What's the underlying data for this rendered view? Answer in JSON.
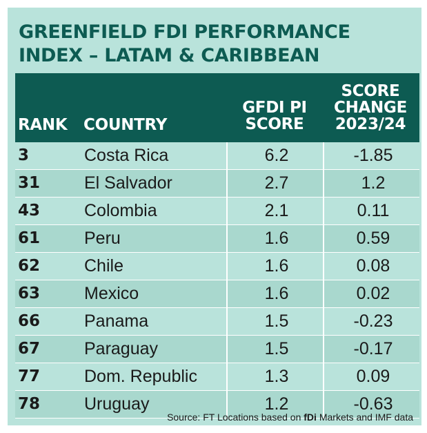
{
  "chart_data": {
    "type": "table",
    "title_lines": [
      "GREENFIELD FDI PERFORMANCE",
      "INDEX – LATAM & CARIBBEAN"
    ],
    "columns": {
      "rank": "RANK",
      "country": "COUNTRY",
      "score": [
        "GFDI PI",
        "SCORE"
      ],
      "change": [
        "SCORE",
        "CHANGE",
        "2023/24"
      ]
    },
    "rows": [
      {
        "rank": "3",
        "country": "Costa Rica",
        "score": "6.2",
        "change": "-1.85"
      },
      {
        "rank": "31",
        "country": "El Salvador",
        "score": "2.7",
        "change": "1.2"
      },
      {
        "rank": "43",
        "country": "Colombia",
        "score": "2.1",
        "change": "0.11"
      },
      {
        "rank": "61",
        "country": "Peru",
        "score": "1.6",
        "change": "0.59"
      },
      {
        "rank": "62",
        "country": "Chile",
        "score": "1.6",
        "change": "0.08"
      },
      {
        "rank": "63",
        "country": "Mexico",
        "score": "1.6",
        "change": "0.02"
      },
      {
        "rank": "66",
        "country": "Panama",
        "score": "1.5",
        "change": "-0.23"
      },
      {
        "rank": "67",
        "country": "Paraguay",
        "score": "1.5",
        "change": "-0.17"
      },
      {
        "rank": "77",
        "country": "Dom. Republic",
        "score": "1.3",
        "change": "0.09"
      },
      {
        "rank": "78",
        "country": "Uruguay",
        "score": "1.2",
        "change": "-0.63"
      }
    ],
    "source": {
      "prefix": "Source: FT Locations based on ",
      "brand": "fDi",
      "suffix": " Markets and IMF data"
    }
  },
  "colors": {
    "header_bg": "#0d5b52",
    "card_bg": "#b9e3db",
    "row_alt_bg": "#a9d8ce",
    "title_text": "#0d5b52"
  }
}
